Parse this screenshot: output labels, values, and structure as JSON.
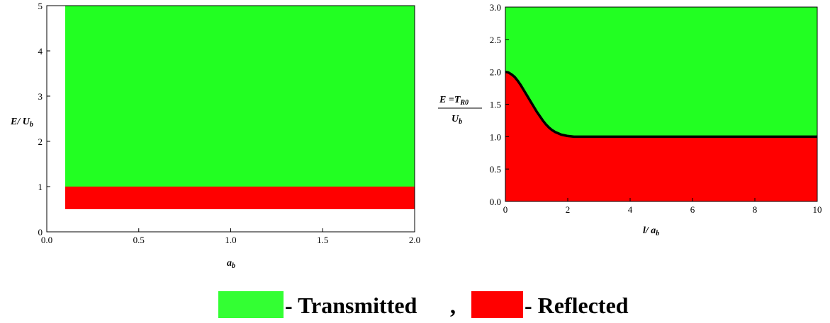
{
  "chart_data": [
    {
      "type": "area",
      "xlabel": "a_b",
      "xlabel_main": "a",
      "xlabel_sub": "b",
      "ylabel_main": "E/ U",
      "ylabel_sub": "b",
      "xlim": [
        0.0,
        2.0
      ],
      "ylim": [
        0,
        5
      ],
      "xticks": [
        "0.0",
        "0.5",
        "1.0",
        "1.5",
        "2.0"
      ],
      "yticks": [
        "0",
        "1",
        "2",
        "3",
        "4",
        "5"
      ],
      "regions": [
        {
          "name": "Transmitted",
          "color": "#22ff22",
          "x": [
            0.1,
            2.0
          ],
          "y_low": 1.0,
          "y_high": 5.0
        },
        {
          "name": "Reflected",
          "color": "#ff0000",
          "x": [
            0.1,
            2.0
          ],
          "y_low": 0.5,
          "y_high": 1.0
        }
      ]
    },
    {
      "type": "area",
      "xlabel_main": "l/ a",
      "xlabel_sub": "b",
      "ylabel_num": "E =T",
      "ylabel_num_sub": "R0",
      "ylabel_den": "U",
      "ylabel_den_sub": "b",
      "xlim": [
        0,
        10
      ],
      "ylim": [
        0.0,
        3.0
      ],
      "xticks": [
        "0",
        "2",
        "4",
        "6",
        "8",
        "10"
      ],
      "yticks": [
        "0.0",
        "0.5",
        "1.0",
        "1.5",
        "2.0",
        "2.5",
        "3.0"
      ],
      "boundary_curve": {
        "color": "#000000",
        "x": [
          0,
          0.1,
          0.2,
          0.3,
          0.4,
          0.5,
          0.6,
          0.7,
          0.8,
          0.9,
          1.0,
          1.1,
          1.2,
          1.3,
          1.4,
          1.5,
          1.6,
          1.7,
          1.8,
          1.9,
          2.0,
          2.2,
          2.5,
          3,
          4,
          5,
          6,
          7,
          8,
          9,
          10
        ],
        "y": [
          2.0,
          1.99,
          1.96,
          1.92,
          1.86,
          1.79,
          1.71,
          1.63,
          1.55,
          1.47,
          1.39,
          1.32,
          1.25,
          1.19,
          1.14,
          1.1,
          1.07,
          1.05,
          1.03,
          1.02,
          1.01,
          1.0,
          1.0,
          1.0,
          1.0,
          1.0,
          1.0,
          1.0,
          1.0,
          1.0,
          1.0
        ]
      },
      "regions": [
        {
          "name": "Transmitted",
          "color": "#22ff22",
          "where": "above boundary"
        },
        {
          "name": "Reflected",
          "color": "#ff0000",
          "where": "below boundary"
        }
      ]
    }
  ],
  "legend": {
    "items": [
      {
        "label": "- Transmitted",
        "color": "#33ff33"
      },
      {
        "label": "- Reflected",
        "color": "#ff0000"
      }
    ],
    "separator": ","
  }
}
